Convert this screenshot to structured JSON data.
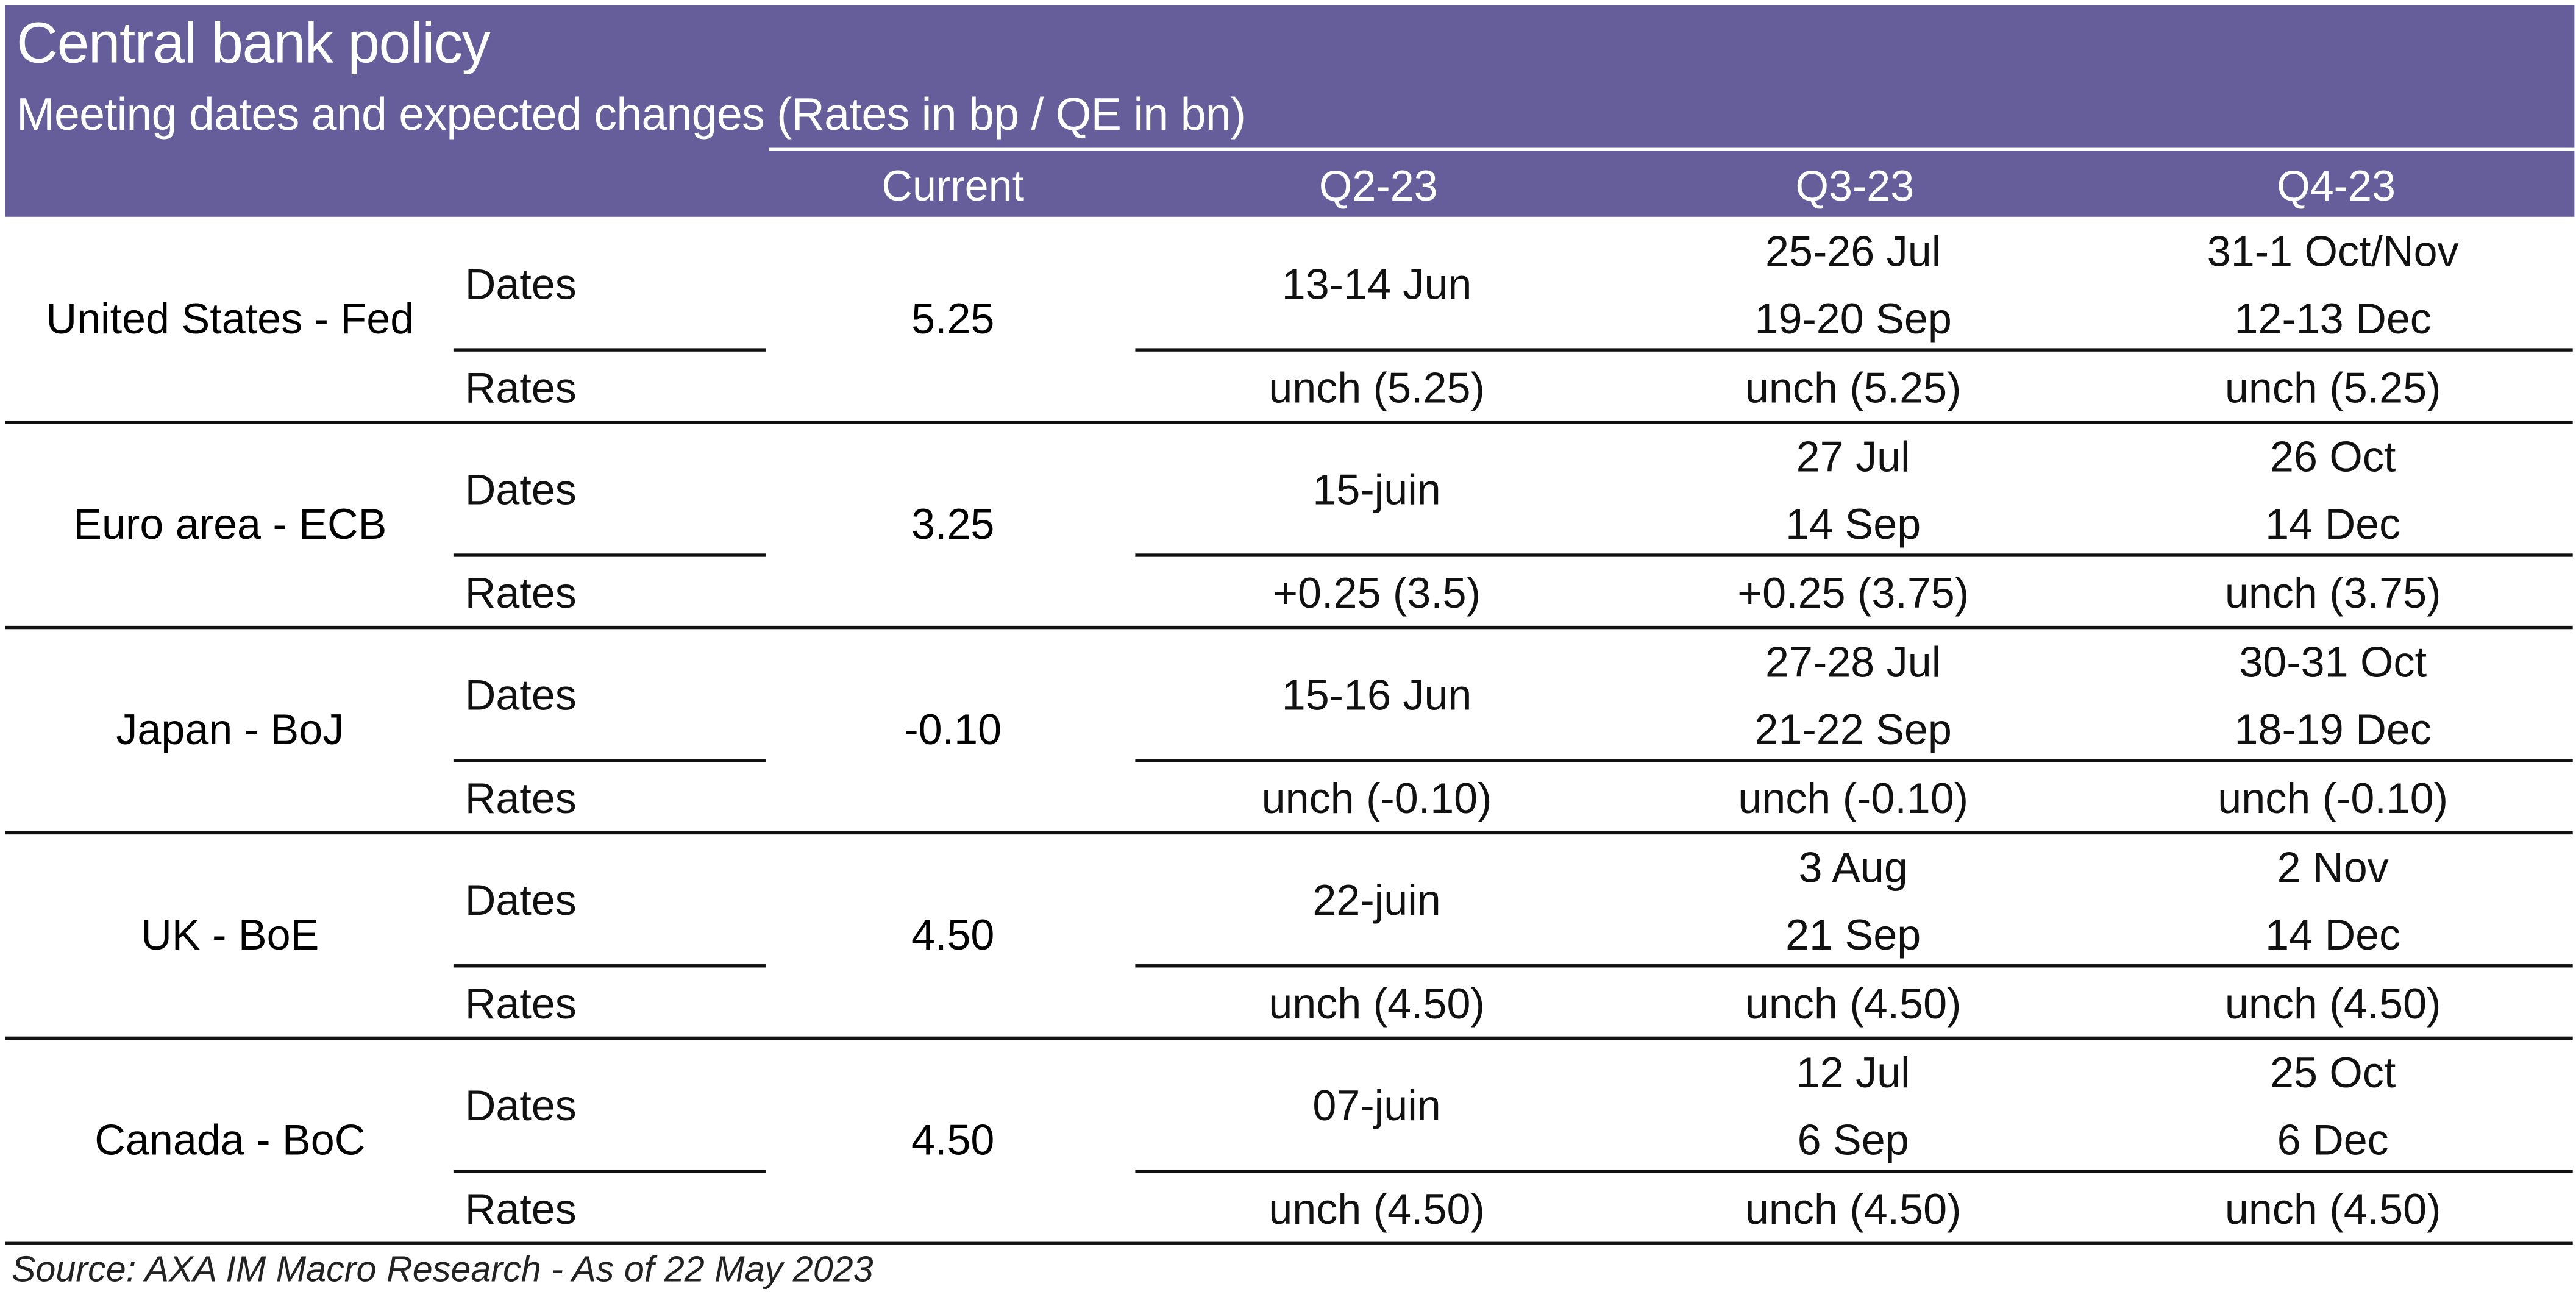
{
  "header": {
    "title": "Central bank policy",
    "subtitle": "Meeting dates and expected changes (Rates in bp / QE in bn)"
  },
  "columns": {
    "current": "Current",
    "q2": "Q2-23",
    "q3": "Q3-23",
    "q4": "Q4-23"
  },
  "row_labels": {
    "dates": "Dates",
    "rates": "Rates"
  },
  "banks": [
    {
      "name": "United States - Fed",
      "current": "5.25",
      "q2_dates": "13-14 Jun",
      "q3_dates": [
        "25-26 Jul",
        "19-20 Sep"
      ],
      "q4_dates": [
        "31-1 Oct/Nov",
        "12-13 Dec"
      ],
      "q2_rates": "unch (5.25)",
      "q3_rates": "unch (5.25)",
      "q4_rates": "unch (5.25)"
    },
    {
      "name": "Euro area - ECB",
      "current": "3.25",
      "q2_dates": "15-juin",
      "q3_dates": [
        "27 Jul",
        "14 Sep"
      ],
      "q4_dates": [
        "26 Oct",
        "14 Dec"
      ],
      "q2_rates": "+0.25 (3.5)",
      "q3_rates": "+0.25 (3.75)",
      "q4_rates": "unch (3.75)"
    },
    {
      "name": "Japan - BoJ",
      "current": "-0.10",
      "q2_dates": "15-16 Jun",
      "q3_dates": [
        "27-28 Jul",
        "21-22 Sep"
      ],
      "q4_dates": [
        "30-31 Oct",
        "18-19 Dec"
      ],
      "q2_rates": "unch (-0.10)",
      "q3_rates": "unch (-0.10)",
      "q4_rates": "unch (-0.10)"
    },
    {
      "name": "UK - BoE",
      "current": "4.50",
      "q2_dates": "22-juin",
      "q3_dates": [
        "3 Aug",
        "21 Sep"
      ],
      "q4_dates": [
        "2 Nov",
        "14 Dec"
      ],
      "q2_rates": "unch (4.50)",
      "q3_rates": "unch (4.50)",
      "q4_rates": "unch (4.50)"
    },
    {
      "name": "Canada - BoC",
      "current": "4.50",
      "q2_dates": "07-juin",
      "q3_dates": [
        "12 Jul",
        "6 Sep"
      ],
      "q4_dates": [
        "25 Oct",
        "6 Dec"
      ],
      "q2_rates": "unch (4.50)",
      "q3_rates": "unch (4.50)",
      "q4_rates": "unch (4.50)"
    }
  ],
  "footer": {
    "source": "Source: AXA IM Macro Research - As of 22 May 2023"
  },
  "colors": {
    "header_bg": "#655e9b",
    "header_text": "#ffffff",
    "rule": "#111111"
  }
}
